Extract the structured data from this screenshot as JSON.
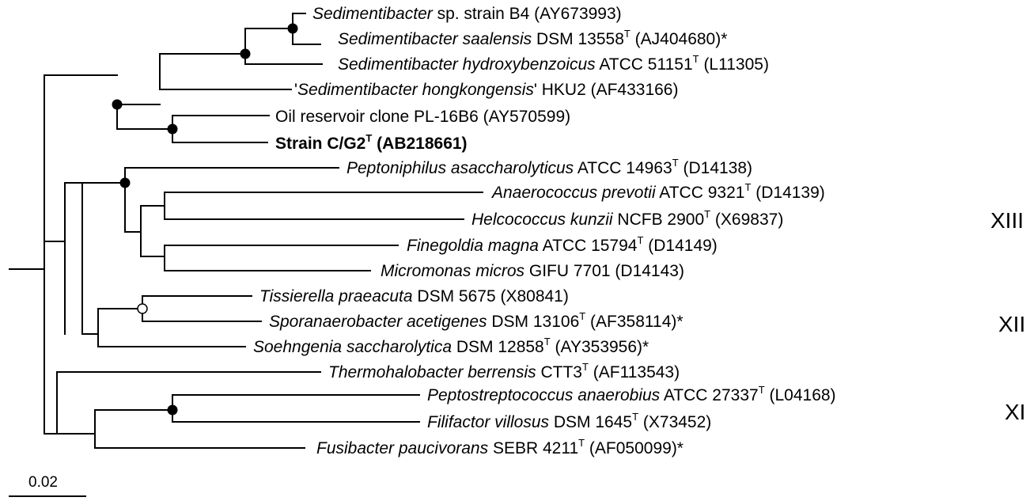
{
  "tree": {
    "taxa": [
      {
        "id": "b4",
        "species": "Sedimentibacter",
        "rest": " sp. strain B4 (AY673993)",
        "type_strain": false,
        "after_sup": ""
      },
      {
        "id": "saalensis",
        "species": "Sedimentibacter saalensis",
        "rest": " DSM 13558",
        "type_strain": true,
        "after_sup": " (AJ404680)*"
      },
      {
        "id": "hydroxy",
        "species": "Sedimentibacter hydroxybenzoicus",
        "rest": " ATCC 51151",
        "type_strain": true,
        "after_sup": " (L11305)"
      },
      {
        "id": "hongkong",
        "prefix": "'",
        "species": "Sedimentibacter hongkongensis",
        "rest": "' HKU2 (AF433166)",
        "type_strain": false,
        "after_sup": ""
      },
      {
        "id": "oil",
        "species": "",
        "rest": "Oil reservoir clone PL-16B6 (AY570599)",
        "type_strain": false,
        "after_sup": ""
      },
      {
        "id": "cg2",
        "species": "",
        "rest": "Strain C/G2",
        "type_strain": true,
        "after_sup": " (AB218661)",
        "bold": true
      },
      {
        "id": "pepton",
        "species": "Peptoniphilus asaccharolyticus",
        "rest": " ATCC 14963",
        "type_strain": true,
        "after_sup": " (D14138)"
      },
      {
        "id": "anaero",
        "species": "Anaerococcus prevotii",
        "rest": " ATCC 9321",
        "type_strain": true,
        "after_sup": " (D14139)"
      },
      {
        "id": "helco",
        "species": "Helcococcus kunzii",
        "rest": " NCFB 2900",
        "type_strain": true,
        "after_sup": " (X69837)"
      },
      {
        "id": "finego",
        "species": "Finegoldia magna",
        "rest": " ATCC 15794",
        "type_strain": true,
        "after_sup": " (D14149)"
      },
      {
        "id": "micro",
        "species": "Micromonas micros",
        "rest": " GIFU 7701 (D14143)",
        "type_strain": false,
        "after_sup": ""
      },
      {
        "id": "tissi",
        "species": "Tissierella praeacuta",
        "rest": " DSM 5675  (X80841)",
        "type_strain": false,
        "after_sup": ""
      },
      {
        "id": "sporan",
        "species": "Sporanaerobacter acetigenes",
        "rest": " DSM 13106",
        "type_strain": true,
        "after_sup": " (AF358114)*"
      },
      {
        "id": "soehn",
        "species": "Soehngenia saccharolytica",
        "rest": " DSM 12858",
        "type_strain": true,
        "after_sup": " (AY353956)*"
      },
      {
        "id": "thermo",
        "species": "Thermohalobacter berrensis",
        "rest": " CTT3",
        "type_strain": true,
        "after_sup": " (AF113543)"
      },
      {
        "id": "pepto",
        "species": "Peptostreptococcus anaerobius",
        "rest": " ATCC 27337",
        "type_strain": true,
        "after_sup": " (L04168)"
      },
      {
        "id": "fili",
        "species": "Filifactor villosus",
        "rest": " DSM 1645",
        "type_strain": true,
        "after_sup": " (X73452)"
      },
      {
        "id": "fusi",
        "species": "Fusibacter paucivorans",
        "rest": " SEBR 4211",
        "type_strain": true,
        "after_sup": " (AF050099)*"
      }
    ],
    "type_superscript": "T",
    "clusters": [
      {
        "id": "xiii",
        "label": "XIII"
      },
      {
        "id": "xii",
        "label": "XII"
      },
      {
        "id": "xi",
        "label": "XI"
      }
    ],
    "scale_bar_label": "0.02",
    "colors": {
      "line": "#000000",
      "node_filled": "#000000",
      "node_open": "#ffffff"
    }
  }
}
